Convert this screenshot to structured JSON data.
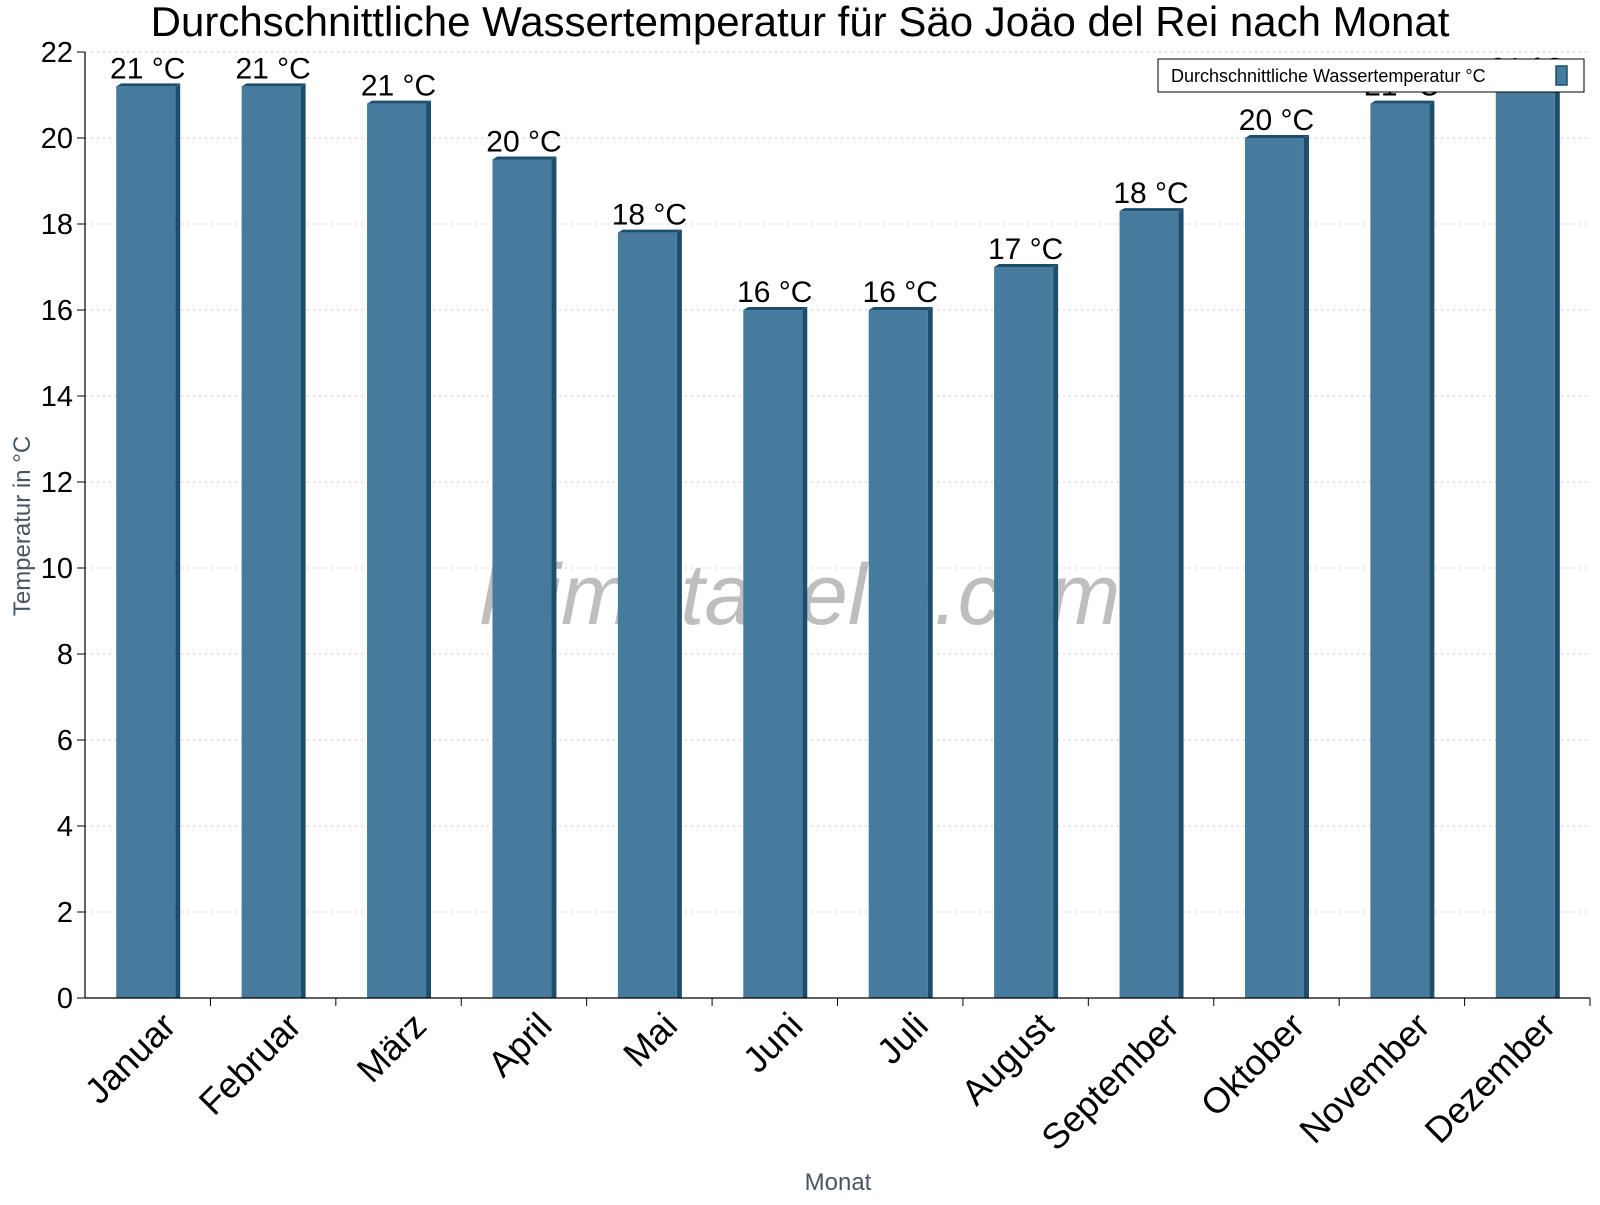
{
  "chart_data": {
    "type": "bar",
    "title": "Durchschnittliche Wassertemperatur für Säo Joäo del Rei nach Monat",
    "xlabel": "Monat",
    "ylabel": "Temperatur in °C",
    "ylim": [
      0,
      22
    ],
    "yticks": [
      0,
      2,
      4,
      6,
      8,
      10,
      12,
      14,
      16,
      18,
      20,
      22
    ],
    "grid": true,
    "legend_position": "top-right",
    "categories": [
      "Januar",
      "Februar",
      "März",
      "April",
      "Mai",
      "Juni",
      "Juli",
      "August",
      "September",
      "Oktober",
      "November",
      "Dezember"
    ],
    "series": [
      {
        "name": "Durchschnittliche Wassertemperatur °C",
        "values": [
          21.2,
          21.2,
          20.8,
          19.5,
          17.8,
          16.0,
          16.0,
          17.0,
          18.3,
          20.0,
          20.8,
          21.2
        ],
        "labels": [
          "21 °C",
          "21 °C",
          "21 °C",
          "20 °C",
          "18 °C",
          "16 °C",
          "16 °C",
          "17 °C",
          "18 °C",
          "20 °C",
          "21 °C",
          "21 °C"
        ]
      }
    ],
    "colors": {
      "bar": "#467b9e",
      "bar_edge": "#1d4e6e"
    },
    "watermark": "klimatabelle.com"
  }
}
